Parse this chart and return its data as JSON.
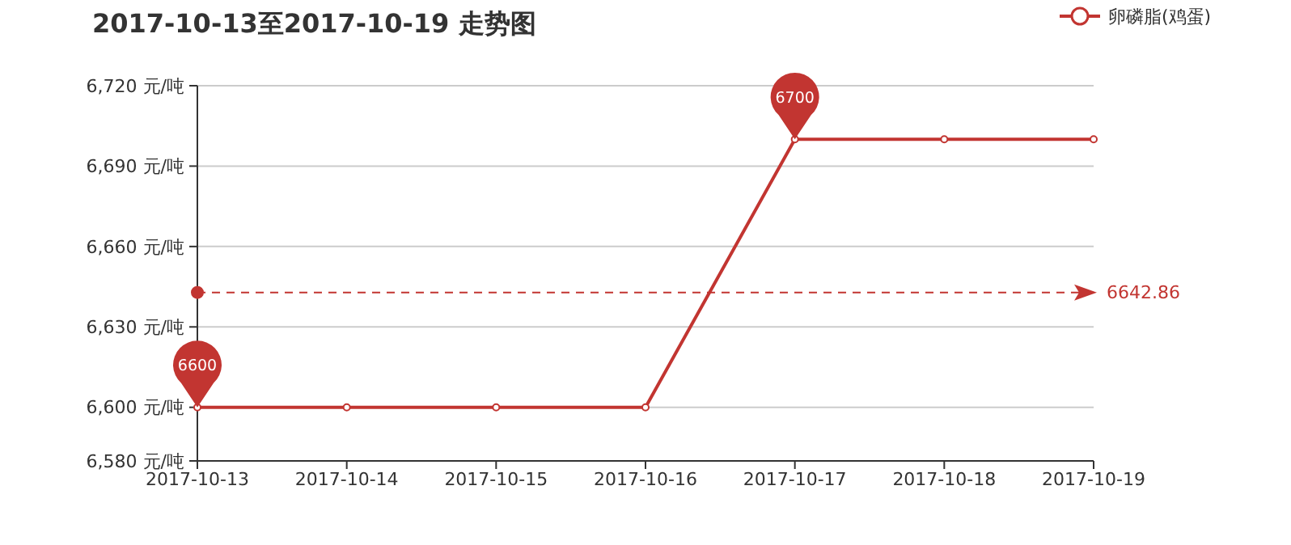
{
  "chart_data": {
    "type": "line",
    "title": "2017-10-13至2017-10-19 走势图",
    "categories": [
      "2017-10-13",
      "2017-10-14",
      "2017-10-15",
      "2017-10-16",
      "2017-10-17",
      "2017-10-18",
      "2017-10-19"
    ],
    "series": [
      {
        "name": "卵磷脂(鸡蛋)",
        "color": "#c23531",
        "values": [
          6600,
          6600,
          6600,
          6600,
          6700,
          6700,
          6700
        ]
      }
    ],
    "ylim": [
      6580,
      6720
    ],
    "yticks": [
      {
        "value": 6580,
        "label": "6,580 元/吨"
      },
      {
        "value": 6600,
        "label": "6,600 元/吨"
      },
      {
        "value": 6630,
        "label": "6,630 元/吨"
      },
      {
        "value": 6660,
        "label": "6,660 元/吨"
      },
      {
        "value": 6690,
        "label": "6,690 元/吨"
      },
      {
        "value": 6720,
        "label": "6,720 元/吨"
      }
    ],
    "grid": "y",
    "legend": "top right",
    "marker": "circle",
    "line_style": "solid",
    "ref_lines": [
      {
        "axis": "y",
        "value": 6642.86,
        "label": "6642.86",
        "color": "#c23531",
        "line_style": "dashed"
      }
    ],
    "annotations": [
      {
        "text": "6700",
        "x": "2017-10-17",
        "y": 6700
      },
      {
        "text": "6600",
        "x": "2017-10-13",
        "y": 6600
      }
    ]
  }
}
